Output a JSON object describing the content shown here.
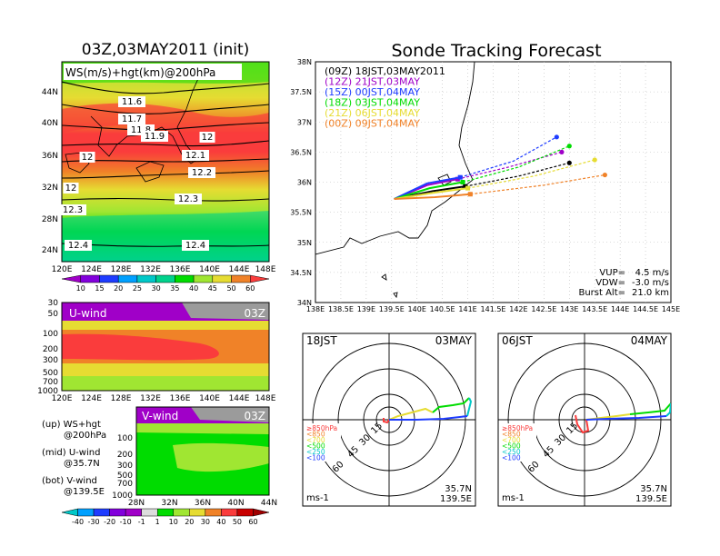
{
  "left_panel": {
    "title": "03Z,03MAY2011 (init)",
    "map_label": "WS(m/s)+hgt(km)@200hPa",
    "lat_ticks": [
      "44N",
      "40N",
      "36N",
      "32N",
      "28N",
      "24N"
    ],
    "lon_ticks": [
      "120E",
      "124E",
      "128E",
      "132E",
      "136E",
      "140E",
      "144E",
      "148E"
    ],
    "contours": [
      {
        "label": "11.6"
      },
      {
        "label": "11.7"
      },
      {
        "label": "11.8"
      },
      {
        "label": "11.9"
      },
      {
        "label": "12"
      },
      {
        "label": "12"
      },
      {
        "label": "12.1"
      },
      {
        "label": "12.2"
      },
      {
        "label": "12"
      },
      {
        "label": "12.3"
      },
      {
        "label": "12.3"
      },
      {
        "label": "12.4"
      },
      {
        "label": "12.4"
      }
    ],
    "ws_colorbar": {
      "labels": [
        "10",
        "15",
        "20",
        "25",
        "30",
        "35",
        "40",
        "45",
        "50",
        "60"
      ],
      "colors": [
        "#a000c8",
        "#8200dc",
        "#1e3cff",
        "#00a0ff",
        "#00c8c8",
        "#00d28c",
        "#00dc00",
        "#a0e632",
        "#e6dc32",
        "#f08228",
        "#fa3c3c"
      ]
    },
    "uwind": {
      "label": "U-wind",
      "time": "03Z",
      "y_ticks": [
        "30",
        "50",
        "100",
        "200",
        "300",
        "500",
        "700",
        "1000"
      ],
      "x_ticks": [
        "120E",
        "124E",
        "128E",
        "132E",
        "136E",
        "140E",
        "144E",
        "148E"
      ]
    },
    "vwind": {
      "label": "V-wind",
      "time": "03Z",
      "y_ticks": [
        "100",
        "200",
        "300",
        "500",
        "700",
        "1000"
      ],
      "x_ticks": [
        "28N",
        "32N",
        "36N",
        "40N",
        "44N"
      ]
    },
    "notes": [
      {
        "a": "(up) WS+hgt",
        "b": "@200hPa"
      },
      {
        "a": "(mid) U-wind",
        "b": "@35.7N"
      },
      {
        "a": "(bot) V-wind",
        "b": "@139.5E"
      }
    ],
    "wind_colorbar": {
      "labels": [
        "-40",
        "-30",
        "-20",
        "-10",
        "-1",
        "1",
        "10",
        "20",
        "30",
        "40",
        "50",
        "60"
      ],
      "colors": [
        "#00c8c8",
        "#00a0ff",
        "#1e3cff",
        "#8200dc",
        "#a000c8",
        "#dcdcdc",
        "#00dc00",
        "#a0e632",
        "#e6dc32",
        "#f08228",
        "#fa3c3c",
        "#c80000",
        "#a00000"
      ]
    }
  },
  "chart_data": [
    {
      "type": "line",
      "title": "Sonde Tracking Forecast",
      "xlim": [
        138.0,
        145.0
      ],
      "ylim": [
        34.0,
        38.0
      ],
      "x_ticks": [
        "138E",
        "138.5E",
        "139E",
        "139.5E",
        "140E",
        "140.5E",
        "141E",
        "141.5E",
        "142E",
        "142.5E",
        "143E",
        "143.5E",
        "144E",
        "144.5E",
        "145E"
      ],
      "y_ticks": [
        "34N",
        "34.5N",
        "35N",
        "35.5N",
        "36N",
        "36.5N",
        "37N",
        "37.5N",
        "38N"
      ],
      "grid": true,
      "legend_position": "top-left",
      "series": [
        {
          "name": "(09Z)  18JST,03MAY2011",
          "color": "#000000",
          "x": [
            139.55,
            140.3,
            140.95,
            142.0,
            143.0
          ],
          "y": [
            35.72,
            35.85,
            35.93,
            36.1,
            36.32
          ],
          "burst": [
            140.95,
            35.93
          ]
        },
        {
          "name": "(12Z)  21JST,03MAY",
          "color": "#a000c8",
          "x": [
            139.55,
            140.2,
            140.8,
            141.8,
            142.85
          ],
          "y": [
            35.72,
            35.95,
            36.05,
            36.25,
            36.5
          ],
          "burst": [
            140.8,
            36.05
          ]
        },
        {
          "name": "(15Z)  00JST,04MAY",
          "color": "#1e3cff",
          "x": [
            139.55,
            140.2,
            140.85,
            141.9,
            142.75
          ],
          "y": [
            35.72,
            35.98,
            36.08,
            36.35,
            36.75
          ],
          "burst": [
            140.85,
            36.08
          ]
        },
        {
          "name": "(18Z)  03JST,04MAY",
          "color": "#00dc00",
          "x": [
            139.55,
            140.25,
            140.9,
            142.0,
            143.0
          ],
          "y": [
            35.72,
            35.9,
            36.0,
            36.25,
            36.6
          ],
          "burst": [
            140.9,
            36.0
          ]
        },
        {
          "name": "(21Z)  06JST,04MAY",
          "color": "#e6dc32",
          "x": [
            139.55,
            140.3,
            141.0,
            142.3,
            143.5
          ],
          "y": [
            35.72,
            35.82,
            35.9,
            36.1,
            36.37
          ],
          "burst": [
            141.0,
            35.9
          ]
        },
        {
          "name": "(00Z)  09JST,04MAY",
          "color": "#f08228",
          "x": [
            139.55,
            140.35,
            141.05,
            142.5,
            143.7
          ],
          "y": [
            35.72,
            35.75,
            35.8,
            35.95,
            36.12
          ],
          "burst": [
            141.05,
            35.8
          ]
        }
      ],
      "annotations": [
        {
          "label": "VUP=",
          "value": "4.5 m/s"
        },
        {
          "label": "VDW=",
          "value": "-3.0 m/s"
        },
        {
          "label": "Burst Alt=",
          "value": "21.0 km"
        }
      ]
    },
    {
      "type": "polar_hodograph",
      "left_label": "18JST",
      "right_label": "03MAY",
      "ring_labels": [
        "15",
        "30",
        "45",
        "60"
      ],
      "level_labels": [
        {
          "text": "≥850hPa",
          "color": "#fa3c3c"
        },
        {
          "text": "<850",
          "color": "#f08228"
        },
        {
          "text": "<700",
          "color": "#e6dc32"
        },
        {
          "text": "<500",
          "color": "#00dc00"
        },
        {
          "text": "<250",
          "color": "#00c8c8"
        },
        {
          "text": "<100",
          "color": "#1e3cff"
        }
      ],
      "units": "ms-1",
      "lat": "35.7N",
      "lon": "139.5E"
    },
    {
      "type": "polar_hodograph",
      "left_label": "06JST",
      "right_label": "04MAY",
      "ring_labels": [
        "15",
        "30",
        "45",
        "60"
      ],
      "level_labels": [
        {
          "text": "≥850hPa",
          "color": "#fa3c3c"
        },
        {
          "text": "<850",
          "color": "#f08228"
        },
        {
          "text": "<700",
          "color": "#e6dc32"
        },
        {
          "text": "<500",
          "color": "#00dc00"
        },
        {
          "text": "<250",
          "color": "#00c8c8"
        },
        {
          "text": "<100",
          "color": "#1e3cff"
        }
      ],
      "units": "ms-1",
      "lat": "35.7N",
      "lon": "139.5E"
    }
  ]
}
